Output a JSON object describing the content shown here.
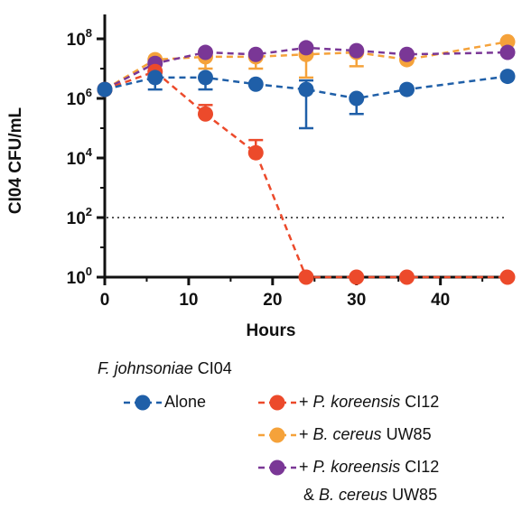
{
  "chart_data": {
    "type": "line",
    "title": "",
    "xlabel": "Hours",
    "ylabel": "CI04 CFU/mL",
    "xlim": [
      0,
      48
    ],
    "ylim_log10": [
      0,
      8.5
    ],
    "y_scale": "log",
    "x_ticks": [
      "0",
      "10",
      "20",
      "30",
      "40"
    ],
    "y_ticks": [
      {
        "base": "10",
        "exp": "0"
      },
      {
        "base": "10",
        "exp": "2"
      },
      {
        "base": "10",
        "exp": "4"
      },
      {
        "base": "10",
        "exp": "6"
      },
      {
        "base": "10",
        "exp": "8"
      }
    ],
    "detection_limit": 100,
    "x": [
      0,
      6,
      12,
      18,
      24,
      30,
      36,
      48
    ],
    "series": [
      {
        "name": "Alone",
        "color": "#1f5fa8",
        "values": [
          2000000,
          5000000,
          5000000,
          3000000,
          2000000,
          1000000,
          2000000,
          5500000
        ],
        "err_low": [
          2000000,
          2000000,
          2000000,
          3000000,
          100000,
          300000,
          2000000,
          5500000
        ],
        "err_high": [
          2000000,
          5000000,
          5000000,
          3000000,
          4000000,
          1000000,
          2000000,
          5500000
        ]
      },
      {
        "name": "+ P. koreensis CI12",
        "color": "#ec4a2b",
        "values": [
          2000000,
          8000000,
          300000,
          15000,
          1,
          1,
          1,
          1
        ],
        "err_low": [
          2000000,
          8000000,
          300000,
          15000,
          1,
          1,
          1,
          1
        ],
        "err_high": [
          2000000,
          8000000,
          600000,
          40000,
          1,
          1,
          1,
          1
        ]
      },
      {
        "name": "+ B. cereus UW85",
        "color": "#f5a23a",
        "values": [
          2000000,
          20000000,
          25000000,
          25000000,
          30000000,
          35000000,
          20000000,
          80000000
        ],
        "err_low": [
          2000000,
          20000000,
          10000000,
          10000000,
          5000000,
          12000000,
          20000000,
          80000000
        ],
        "err_high": [
          2000000,
          20000000,
          25000000,
          25000000,
          30000000,
          35000000,
          20000000,
          80000000
        ]
      },
      {
        "name": "+ P. koreensis CI12 & B. cereus UW85",
        "color": "#7a3796",
        "values": [
          2000000,
          15000000,
          35000000,
          30000000,
          50000000,
          40000000,
          30000000,
          35000000
        ],
        "err_low": [
          2000000,
          15000000,
          35000000,
          30000000,
          50000000,
          40000000,
          30000000,
          35000000
        ],
        "err_high": [
          2000000,
          15000000,
          35000000,
          30000000,
          50000000,
          40000000,
          30000000,
          35000000
        ]
      }
    ],
    "legend": {
      "title": "F. johnsoniae CI04",
      "items": [
        {
          "prefix": "",
          "italic": "",
          "rest": "Alone",
          "color": "#1f5fa8"
        },
        {
          "prefix": "+ ",
          "italic": "P. koreensis",
          "rest": " CI12",
          "color": "#ec4a2b"
        },
        {
          "prefix": "+ ",
          "italic": "B. cereus",
          "rest": " UW85",
          "color": "#f5a23a"
        },
        {
          "prefix": "+ ",
          "italic": "P. koreensis",
          "rest": " CI12",
          "color": "#7a3796"
        }
      ],
      "continuation": {
        "prefix": "& ",
        "italic": "B. cereus",
        "rest": " UW85"
      }
    },
    "grid": false,
    "legend_position": "bottom"
  }
}
